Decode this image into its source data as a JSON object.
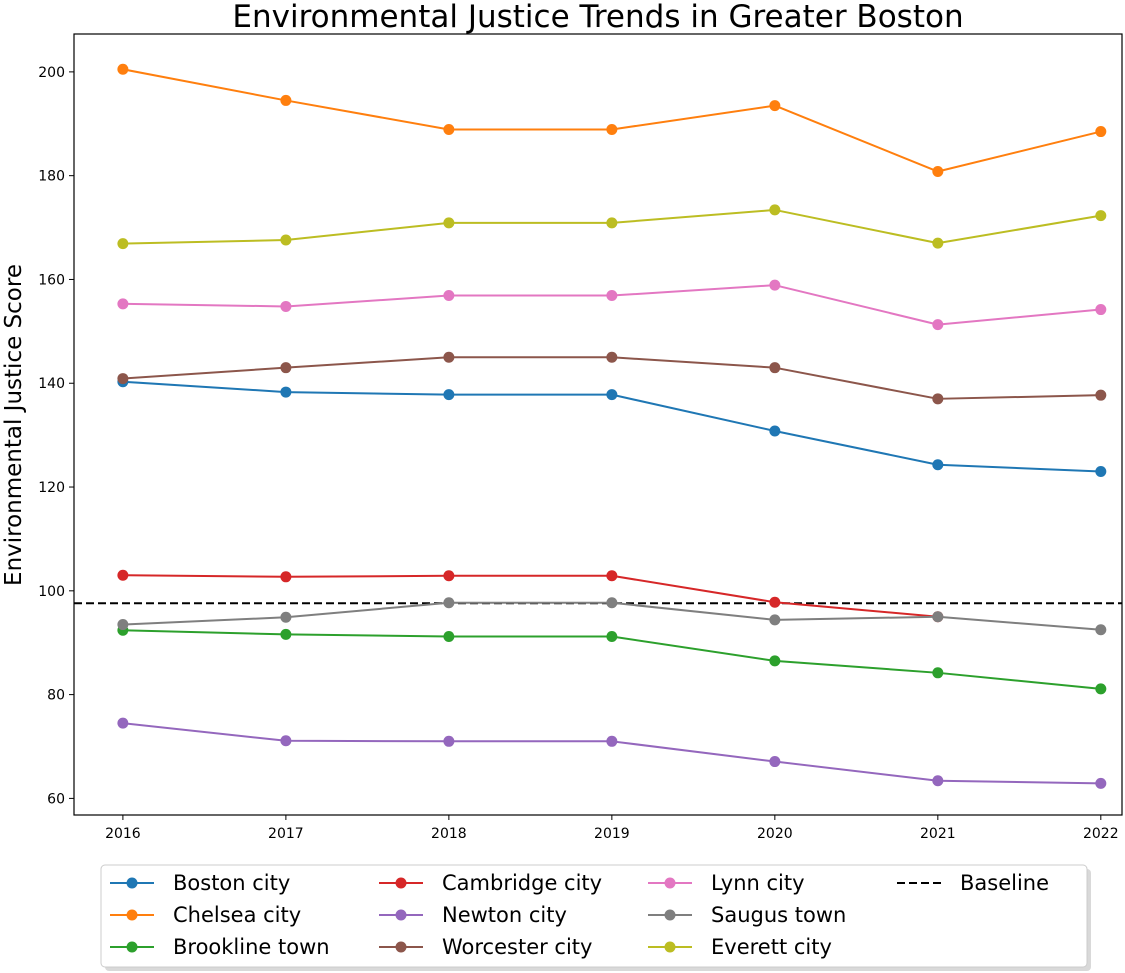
{
  "chart_data": {
    "type": "line",
    "title": "Environmental Justice Trends in Greater Boston",
    "xlabel": "",
    "ylabel": "Environmental Justice Score",
    "x": [
      "2016",
      "2017",
      "2018",
      "2019",
      "2020",
      "2021",
      "2022"
    ],
    "xlim": [
      2015.7,
      2022.13
    ],
    "ylim": [
      56.8,
      207.3
    ],
    "yticks": [
      60,
      80,
      100,
      120,
      140,
      160,
      180,
      200
    ],
    "grid": false,
    "legend_position": "bottom-center",
    "series": [
      {
        "name": "Boston city",
        "color": "#1f77b4",
        "values": [
          140.3,
          138.3,
          137.8,
          137.8,
          130.8,
          124.3,
          123.0
        ]
      },
      {
        "name": "Chelsea city",
        "color": "#ff7f0e",
        "values": [
          200.5,
          194.5,
          188.9,
          188.9,
          193.5,
          180.8,
          188.5
        ]
      },
      {
        "name": "Brookline town",
        "color": "#2ca02c",
        "values": [
          92.4,
          91.6,
          91.2,
          91.2,
          86.5,
          84.2,
          81.1
        ]
      },
      {
        "name": "Cambridge city",
        "color": "#d62728",
        "values": [
          103.0,
          102.7,
          102.9,
          102.9,
          97.8,
          95.0,
          null
        ]
      },
      {
        "name": "Newton city",
        "color": "#9467bd",
        "values": [
          74.5,
          71.1,
          71.0,
          71.0,
          67.1,
          63.4,
          62.9
        ]
      },
      {
        "name": "Worcester city",
        "color": "#8c564b",
        "values": [
          140.9,
          143.0,
          145.0,
          145.0,
          143.0,
          137.0,
          137.7
        ]
      },
      {
        "name": "Lynn city",
        "color": "#e377c2",
        "values": [
          155.3,
          154.8,
          156.9,
          156.9,
          158.9,
          151.3,
          154.2
        ]
      },
      {
        "name": "Saugus town",
        "color": "#7f7f7f",
        "values": [
          93.5,
          94.9,
          97.7,
          97.7,
          94.4,
          95.0,
          92.5
        ]
      },
      {
        "name": "Everett city",
        "color": "#bcbd22",
        "values": [
          166.9,
          167.6,
          170.9,
          170.9,
          173.4,
          167.0,
          172.3
        ]
      }
    ],
    "baseline": {
      "name": "Baseline",
      "value": 97.6,
      "color": "#000000",
      "style": "dashed"
    }
  }
}
